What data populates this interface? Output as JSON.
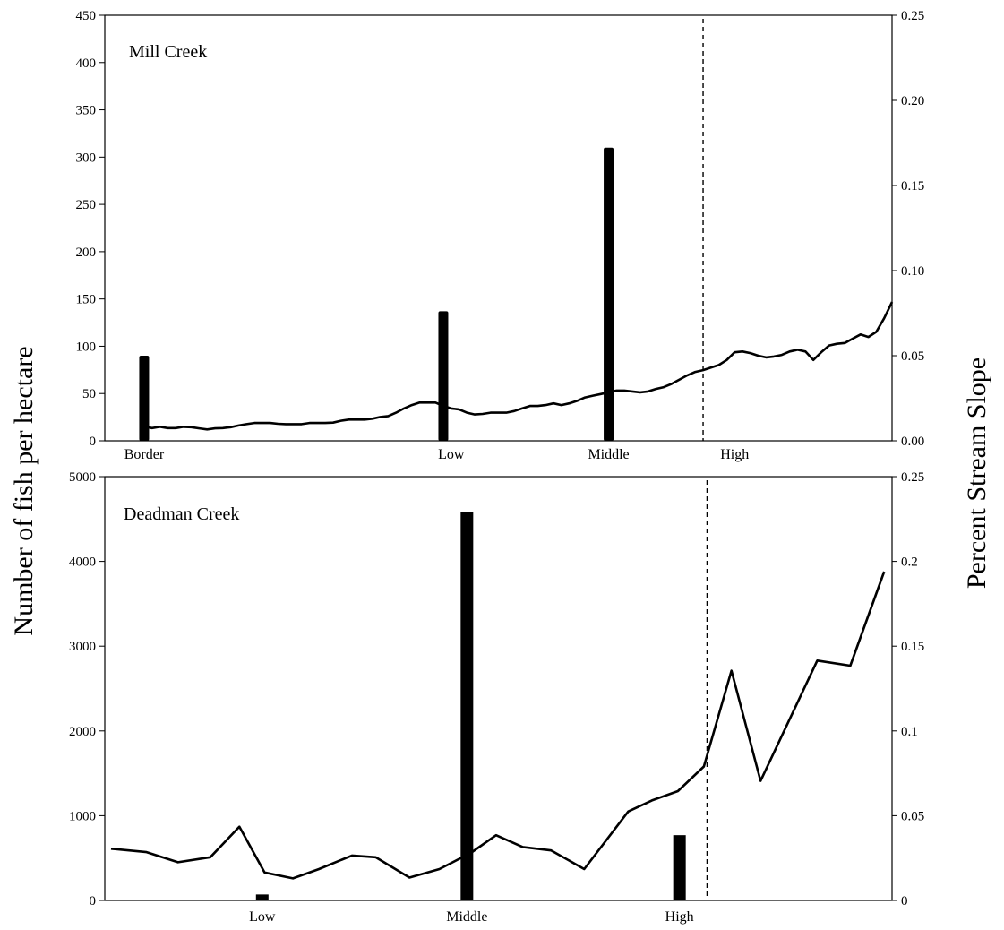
{
  "axis_titles": {
    "left": "Number of fish per hectare",
    "right": "Percent Stream Slope"
  },
  "chart_data": [
    {
      "type": "bar",
      "title": "Mill Creek",
      "ylabel": "Number of fish per hectare",
      "y2label": "Percent Stream Slope",
      "ylim": [
        0,
        450
      ],
      "y2lim": [
        0,
        0.25
      ],
      "yticks": [
        "0",
        "50",
        "100",
        "150",
        "200",
        "250",
        "300",
        "350",
        "400",
        "450"
      ],
      "y2ticks": [
        "0.00",
        "0.05",
        "0.10",
        "0.15",
        "0.20",
        "0.25"
      ],
      "x_range": [
        0,
        100
      ],
      "categories": [
        {
          "label": "Border",
          "x": 5,
          "bar_x": 5,
          "value": 90
        },
        {
          "label": "Low",
          "x": 44,
          "bar_x": 43,
          "value": 137
        },
        {
          "label": "Middle",
          "x": 64,
          "bar_x": 64,
          "value": 310
        },
        {
          "label": "High",
          "x": 80,
          "bar_x": null,
          "value": null
        }
      ],
      "divider_x": 76,
      "slope_series": {
        "name": "Percent Stream Slope",
        "x": [
          5,
          6,
          7,
          8,
          9,
          10,
          11,
          12,
          13,
          14,
          15,
          16,
          17,
          18,
          19,
          20,
          21,
          22,
          23,
          24,
          25,
          26,
          27,
          28,
          29,
          30,
          31,
          32,
          33,
          34,
          35,
          36,
          37,
          38,
          39,
          40,
          41,
          42,
          43,
          44,
          45,
          46,
          47,
          48,
          49,
          50,
          51,
          52,
          53,
          54,
          55,
          56,
          57,
          58,
          59,
          60,
          61,
          62,
          63,
          64,
          65,
          66,
          67,
          68,
          69,
          70,
          71,
          72,
          73,
          74,
          75,
          76,
          77,
          78,
          79,
          80,
          81,
          82,
          83,
          84,
          85,
          86,
          87,
          88,
          89,
          90,
          91,
          92,
          93,
          94,
          95,
          96,
          97,
          98,
          99,
          100
        ],
        "y": [
          0.0085,
          0.0075,
          0.0082,
          0.0075,
          0.0075,
          0.0082,
          0.008,
          0.0073,
          0.0067,
          0.0073,
          0.0075,
          0.008,
          0.009,
          0.0098,
          0.0105,
          0.0105,
          0.0105,
          0.01,
          0.0098,
          0.0098,
          0.0098,
          0.0105,
          0.0105,
          0.0105,
          0.0107,
          0.0118,
          0.0125,
          0.0125,
          0.0125,
          0.013,
          0.014,
          0.0145,
          0.0165,
          0.019,
          0.021,
          0.0225,
          0.0225,
          0.0225,
          0.0205,
          0.019,
          0.0185,
          0.0165,
          0.0155,
          0.0158,
          0.0165,
          0.0165,
          0.0165,
          0.0175,
          0.019,
          0.0205,
          0.0205,
          0.021,
          0.022,
          0.021,
          0.022,
          0.0235,
          0.0255,
          0.0265,
          0.0275,
          0.0285,
          0.0295,
          0.0295,
          0.029,
          0.0285,
          0.029,
          0.0305,
          0.0315,
          0.0335,
          0.036,
          0.0385,
          0.0405,
          0.0415,
          0.043,
          0.0445,
          0.0475,
          0.052,
          0.0525,
          0.0515,
          0.05,
          0.049,
          0.0495,
          0.0505,
          0.0525,
          0.0535,
          0.0525,
          0.0475,
          0.052,
          0.056,
          0.057,
          0.0575,
          0.06,
          0.0625,
          0.061,
          0.064,
          0.072,
          0.0815
        ]
      }
    },
    {
      "type": "bar",
      "title": "Deadman Creek",
      "ylabel": "Number of fish per hectare",
      "y2label": "Percent Stream Slope",
      "ylim": [
        0,
        5000
      ],
      "y2lim": [
        0,
        0.25
      ],
      "yticks": [
        "0",
        "1000",
        "2000",
        "3000",
        "4000",
        "5000"
      ],
      "y2ticks": [
        "0",
        "0.05",
        "0.1",
        "0.15",
        "0.2",
        "0.25"
      ],
      "x_range": [
        0,
        100
      ],
      "categories": [
        {
          "label": "Low",
          "x": 20,
          "bar_x": 20,
          "value": 70
        },
        {
          "label": "Middle",
          "x": 46,
          "bar_x": 46,
          "value": 4580
        },
        {
          "label": "High",
          "x": 73,
          "bar_x": 73,
          "value": 770
        }
      ],
      "divider_x": 76.5,
      "slope_series": {
        "name": "Percent Stream Slope",
        "x": [
          0.8,
          5.3,
          9.3,
          13.4,
          17.1,
          20.3,
          23.9,
          27.2,
          31.4,
          34.4,
          38.7,
          42.5,
          46.5,
          49.7,
          53.1,
          56.7,
          60.9,
          66.5,
          69.5,
          72.8,
          76.1,
          79.6,
          83.3,
          90.5,
          94.7,
          99
        ],
        "y": [
          0.0305,
          0.0285,
          0.0225,
          0.0255,
          0.0435,
          0.0165,
          0.013,
          0.0185,
          0.0265,
          0.0255,
          0.0135,
          0.0185,
          0.028,
          0.0385,
          0.0315,
          0.0295,
          0.0185,
          0.0525,
          0.059,
          0.0645,
          0.079,
          0.1355,
          0.0705,
          0.1415,
          0.1385,
          0.194
        ]
      }
    }
  ]
}
